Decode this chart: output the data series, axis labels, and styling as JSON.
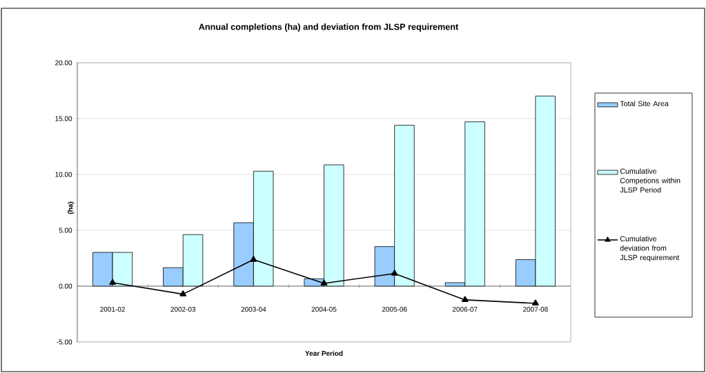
{
  "chart_data": {
    "type": "bar",
    "title": "Annual completions (ha) and deviation from JLSP requirement",
    "xlabel": "Year Period",
    "ylabel": "(ha)",
    "categories": [
      "2001-02",
      "2002-03",
      "2003-04",
      "2004-05",
      "2005-06",
      "2006-07",
      "2007-08"
    ],
    "series": [
      {
        "name": "Total Site Area",
        "color": "#99ccff",
        "values": [
          3.02,
          1.65,
          5.68,
          0.66,
          3.54,
          0.31,
          2.37
        ]
      },
      {
        "name": "Cumulative Competions within JLSP Period",
        "color": "#ccffff",
        "values": [
          3.02,
          4.61,
          10.29,
          10.86,
          14.4,
          14.71,
          17.02
        ]
      },
      {
        "name": "Cumulative deviation from JLSP requirement",
        "type": "line",
        "color": "#000000",
        "marker": "triangle",
        "values": [
          0.31,
          -0.72,
          2.37,
          0.25,
          1.13,
          -1.23,
          -1.54
        ]
      }
    ],
    "ylim": [
      -5,
      20
    ],
    "yticks": [
      {
        "value": -5,
        "label": "-5.00"
      },
      {
        "value": 0,
        "label": "0.00"
      },
      {
        "value": 5,
        "label": "5.00"
      },
      {
        "value": 10,
        "label": "10.00"
      },
      {
        "value": 15,
        "label": "15.00"
      },
      {
        "value": 20,
        "label": "20.00"
      }
    ],
    "grid": "y",
    "legend": "right"
  }
}
